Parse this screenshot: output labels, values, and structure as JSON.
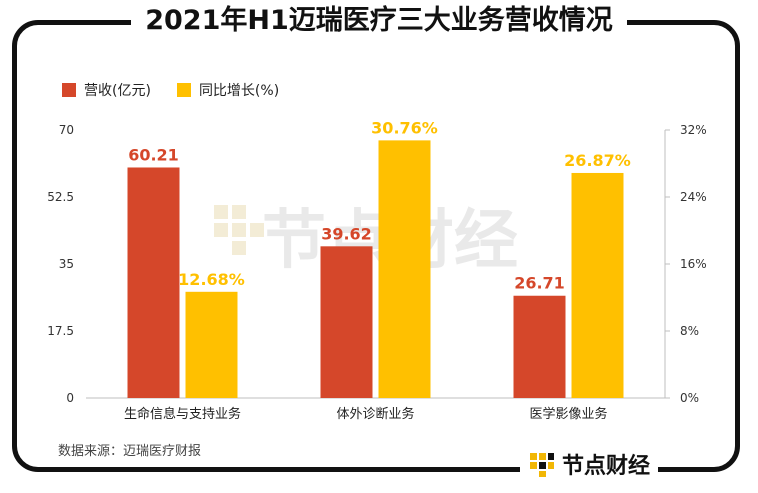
{
  "title": "2021年H1迈瑞医疗三大业务营收情况",
  "source": "数据来源：迈瑞医疗财报",
  "brand": "节点财经",
  "watermark": "节点财经",
  "colors": {
    "revenue": "#D5472A",
    "growth": "#FFC000"
  },
  "chart_data": {
    "type": "bar",
    "categories": [
      "生命信息与支持业务",
      "体外诊断业务",
      "医学影像业务"
    ],
    "series": [
      {
        "name": "营收(亿元)",
        "axis": "left",
        "values": [
          60.21,
          39.62,
          26.71
        ],
        "labels": [
          "60.21",
          "39.62",
          "26.71"
        ]
      },
      {
        "name": "同比增长(%)",
        "axis": "right",
        "values": [
          12.68,
          30.76,
          26.87
        ],
        "labels": [
          "12.68%",
          "30.76%",
          "26.87%"
        ]
      }
    ],
    "left_axis": {
      "min": 0,
      "max": 70,
      "ticks": [
        "0",
        "17.5",
        "35",
        "52.5",
        "70"
      ]
    },
    "right_axis": {
      "min": 0,
      "max": 32,
      "ticks": [
        "0%",
        "8%",
        "16%",
        "24%",
        "32%"
      ]
    }
  }
}
